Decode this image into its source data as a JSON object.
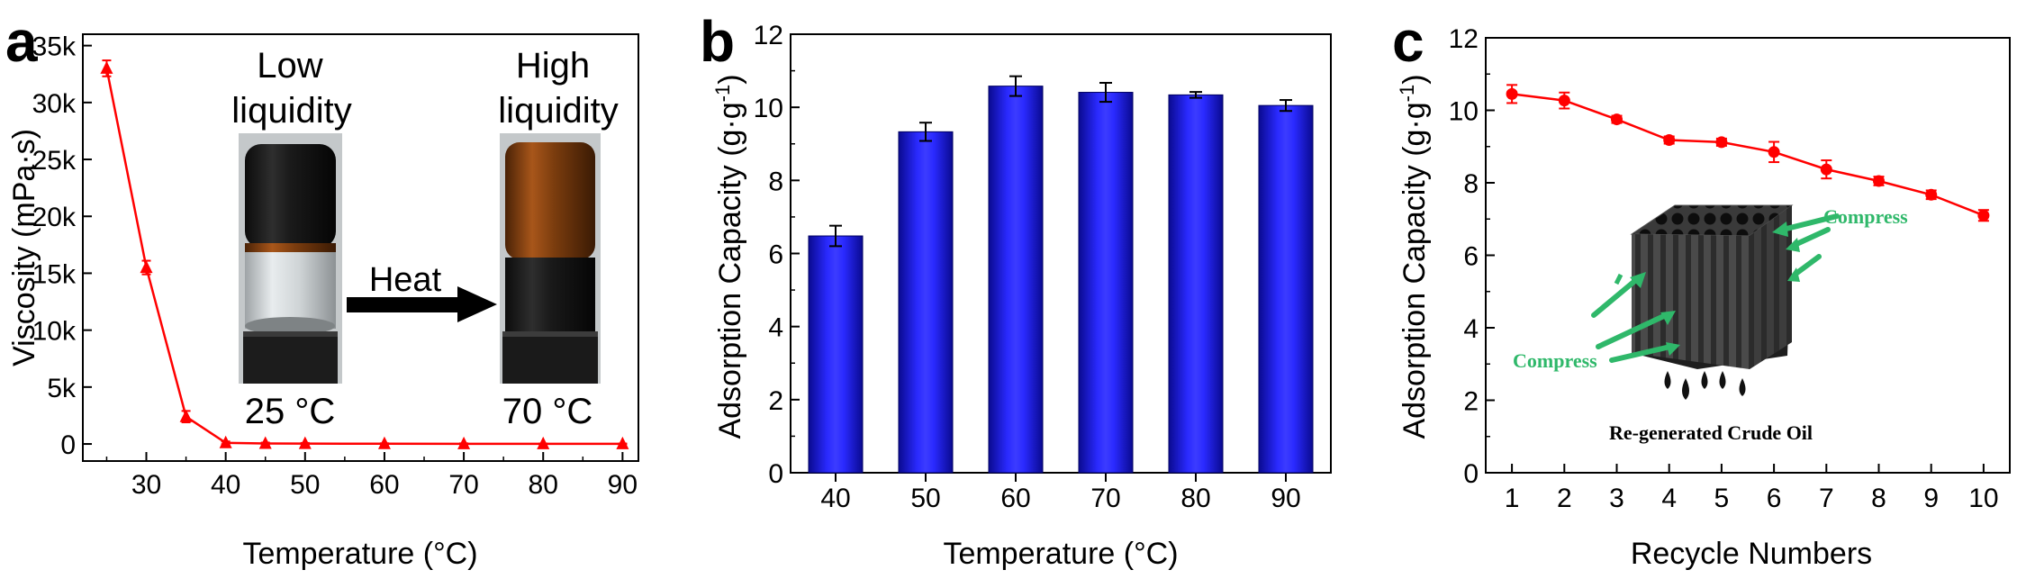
{
  "chart_data": [
    {
      "panel": "a",
      "type": "line",
      "xlabel": "Temperature (°C)",
      "ylabel": "Viscosity (mPa·s)",
      "xlim": [
        22,
        92
      ],
      "ylim": [
        -1500,
        36000
      ],
      "xticks": [
        30,
        40,
        50,
        60,
        70,
        80,
        90
      ],
      "yticks": [
        0,
        5000,
        10000,
        15000,
        20000,
        25000,
        30000,
        35000
      ],
      "ytick_labels": [
        "0",
        "5k",
        "10k",
        "15k",
        "20k",
        "25k",
        "30k",
        "35k"
      ],
      "series": [
        {
          "name": "Viscosity",
          "color": "#ff0000",
          "x": [
            25,
            30,
            35,
            40,
            45,
            50,
            60,
            70,
            80,
            90
          ],
          "values": [
            33000,
            15500,
            2400,
            100,
            40,
            30,
            20,
            15,
            10,
            10
          ],
          "errors": [
            700,
            600,
            500,
            120,
            80,
            60,
            40,
            40,
            30,
            30
          ]
        }
      ],
      "annotations": {
        "left_label_line1": "Low",
        "left_label_line2": "liquidity",
        "right_label_line1": "High",
        "right_label_line2": "liquidity",
        "arrow_text": "Heat",
        "left_temp": "25 °C",
        "right_temp": "70 °C"
      }
    },
    {
      "panel": "b",
      "type": "bar",
      "xlabel": "Temperature (°C)",
      "ylabel_main": "Adsorption Capacity (g·g",
      "ylabel_sup": "-1",
      "ylabel_end": ")",
      "categories": [
        "40",
        "50",
        "60",
        "70",
        "80",
        "90"
      ],
      "values": [
        6.48,
        9.33,
        10.58,
        10.41,
        10.34,
        10.05
      ],
      "errors": [
        0.28,
        0.25,
        0.27,
        0.26,
        0.08,
        0.15
      ],
      "ylim": [
        0,
        12
      ],
      "yticks": [
        0,
        2,
        4,
        6,
        8,
        10,
        12
      ],
      "bar_color": "#1010e0"
    },
    {
      "panel": "c",
      "type": "line",
      "xlabel": "Recycle Numbers",
      "ylabel_main": "Adsorption Capacity (g·g",
      "ylabel_sup": "-1",
      "ylabel_end": ")",
      "xticks": [
        1,
        2,
        3,
        4,
        5,
        6,
        7,
        8,
        9,
        10
      ],
      "xlim": [
        0.5,
        10.5
      ],
      "ylim": [
        0,
        12
      ],
      "yticks": [
        0,
        2,
        4,
        6,
        8,
        10,
        12
      ],
      "series": [
        {
          "name": "Adsorption Capacity",
          "color": "#ff0000",
          "x": [
            1,
            2,
            3,
            4,
            5,
            6,
            7,
            8,
            9,
            10
          ],
          "values": [
            10.45,
            10.27,
            9.75,
            9.18,
            9.12,
            8.85,
            8.37,
            8.05,
            7.67,
            7.1
          ],
          "errors": [
            0.25,
            0.22,
            0.1,
            0.1,
            0.1,
            0.28,
            0.25,
            0.12,
            0.12,
            0.15
          ]
        }
      ],
      "inset": {
        "compress_top": "Compress",
        "compress_left": "Compress",
        "caption": "Re-generated Crude Oil"
      }
    }
  ]
}
